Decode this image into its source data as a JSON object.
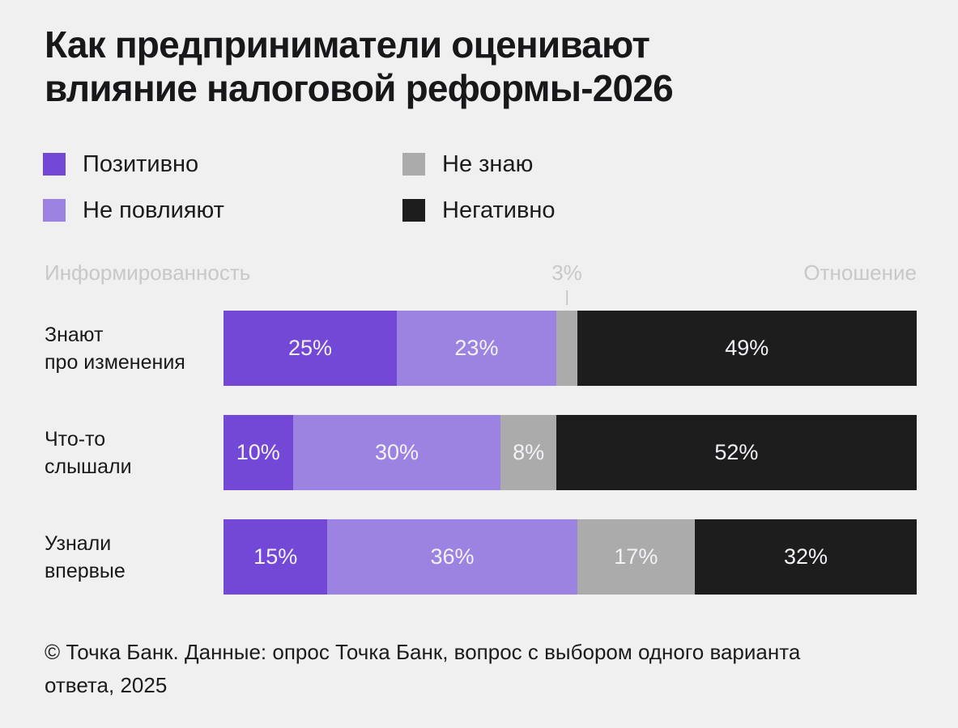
{
  "header": {
    "title": "Как предприниматели оценивают\nвлияние налоговой реформы-2026"
  },
  "legend": {
    "items": [
      {
        "label": "Позитивно",
        "color": "#7348D7"
      },
      {
        "label": "Не знаю",
        "color": "#ABABAB"
      },
      {
        "label": "Не повлияют",
        "color": "#9C83E1"
      },
      {
        "label": "Негативно",
        "color": "#1D1D1E"
      }
    ]
  },
  "chart_data": {
    "type": "bar",
    "stacked": true,
    "orientation": "horizontal",
    "title": "Как предприниматели оценивают влияние налоговой реформы-2026",
    "axis_left_label": "Информированность",
    "axis_right_label": "Отношение",
    "x_range": [
      0,
      100
    ],
    "value_suffix": "%",
    "categories": [
      "Знают\nпро изменения",
      "Что-то\nслышали",
      "Узнали\nвпервые"
    ],
    "series": [
      {
        "name": "Позитивно",
        "color": "#7348D7",
        "values": [
          25,
          10,
          15
        ]
      },
      {
        "name": "Не повлияют",
        "color": "#9C83E1",
        "values": [
          23,
          30,
          36
        ]
      },
      {
        "name": "Не знаю",
        "color": "#ABABAB",
        "values": [
          3,
          8,
          17
        ]
      },
      {
        "name": "Негативно",
        "color": "#1D1D1E",
        "values": [
          49,
          52,
          32
        ]
      }
    ],
    "segment_labels": [
      [
        "25%",
        "23%",
        "",
        "49%"
      ],
      [
        "10%",
        "30%",
        "8%",
        "52%"
      ],
      [
        "15%",
        "36%",
        "17%",
        "32%"
      ]
    ],
    "annotation": {
      "text": "3%",
      "target": "unlabeled gray segment of first row"
    }
  },
  "footer": {
    "text": "© Точка Банк. Данные: опрос Точка Банк, вопрос с выбором одного варианта\nответа, 2025"
  },
  "colors": {
    "background": "#F0F0F0",
    "positive": "#7348D7",
    "no_effect": "#9C83E1",
    "dont_know": "#ABABAB",
    "negative": "#1D1D1E",
    "axis_text": "#C8C8C9",
    "text": "#19191B"
  }
}
